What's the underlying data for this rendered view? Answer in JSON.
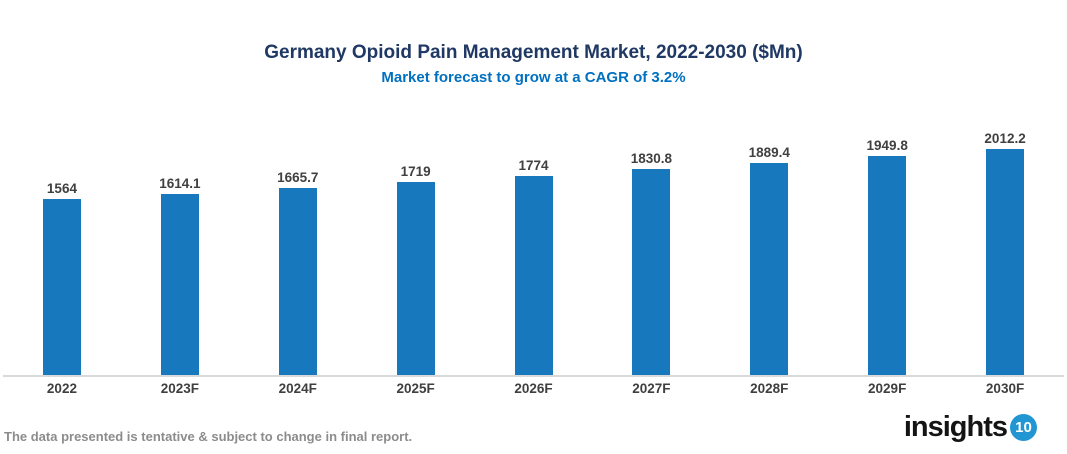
{
  "header": {
    "title": "Germany Opioid Pain Management Market, 2022-2030 ($Mn)",
    "subtitle": "Market forecast to grow at a CAGR of 3.2%"
  },
  "chart_data": {
    "type": "bar",
    "categories": [
      "2022",
      "2023F",
      "2024F",
      "2025F",
      "2026F",
      "2027F",
      "2028F",
      "2029F",
      "2030F"
    ],
    "values": [
      1564,
      1614.1,
      1665.7,
      1719,
      1774,
      1830.8,
      1889.4,
      1949.8,
      2012.2
    ],
    "labels": [
      "1564",
      "1614.1",
      "1665.7",
      "1719",
      "1774",
      "1830.8",
      "1889.4",
      "1949.8",
      "2012.2"
    ],
    "title": "Germany Opioid Pain Management Market, 2022-2030 ($Mn)",
    "subtitle": "Market forecast to grow at a CAGR of 3.2%",
    "xlabel": "",
    "ylabel": "",
    "ylim": [
      0,
      2225
    ],
    "grid": false,
    "legend": false,
    "bar_color": "#1778BE",
    "data_label_color": "#404040",
    "axis_line_color": "#D9D9D9"
  },
  "footer": {
    "note": "The data presented is tentative & subject to change in final report.",
    "logo_text": "insights",
    "logo_badge": "10"
  },
  "colors": {
    "title": "#1F3864",
    "subtitle": "#0070C0",
    "bar": "#1778BE",
    "axis_line": "#D9D9D9",
    "note_text": "#8C8C8C",
    "logo_badge_bg": "#2196D3"
  }
}
